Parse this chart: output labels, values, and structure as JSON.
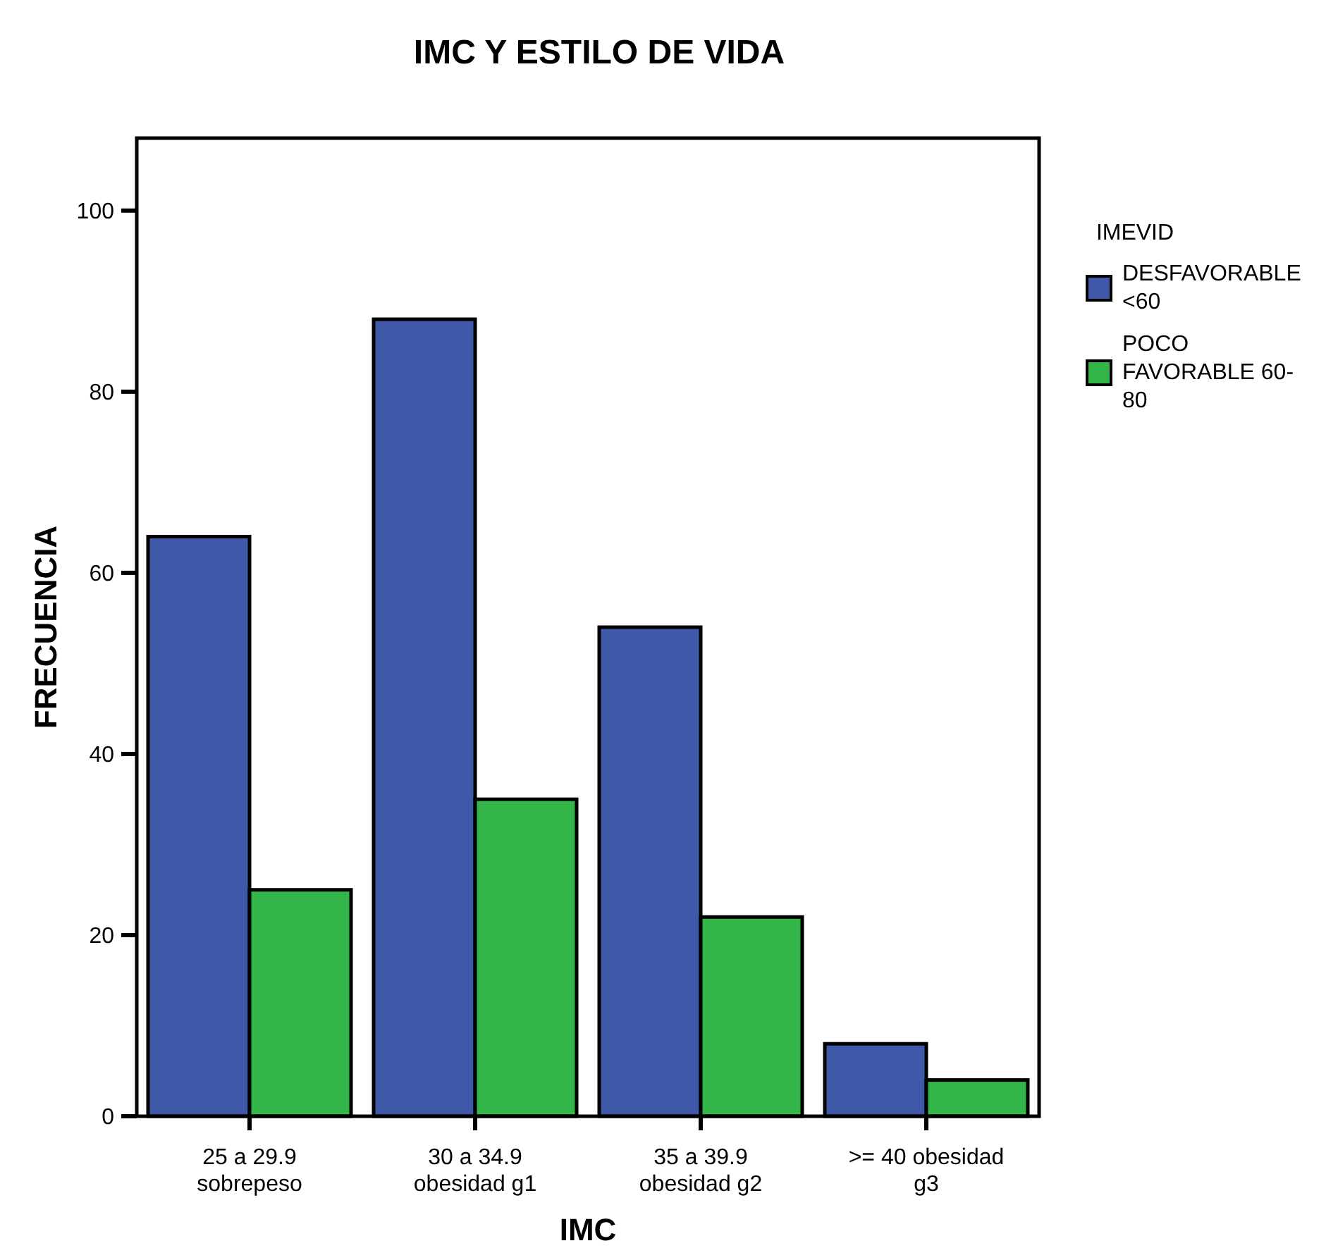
{
  "chart_data": {
    "type": "bar",
    "title": "IMC Y ESTILO DE VIDA",
    "xlabel": "IMC",
    "ylabel": "FRECUENCIA",
    "legend_title": "IMEVID",
    "categories": [
      "25 a 29.9 sobrepeso",
      "30 a 34.9 obesidad g1",
      "35 a 39.9 obesidad g2",
      ">= 40 obesidad g3"
    ],
    "series": [
      {
        "name": "DESFAVORABLE <60",
        "color": "#3f58a8",
        "values": [
          64,
          88,
          54,
          8
        ]
      },
      {
        "name": "POCO FAVORABLE 60-80",
        "color": "#33b54a",
        "values": [
          25,
          35,
          22,
          4
        ]
      }
    ],
    "ylim": [
      0,
      108
    ],
    "yticks": [
      0,
      20,
      40,
      60,
      80,
      100
    ],
    "grid": false,
    "legend": "right"
  }
}
